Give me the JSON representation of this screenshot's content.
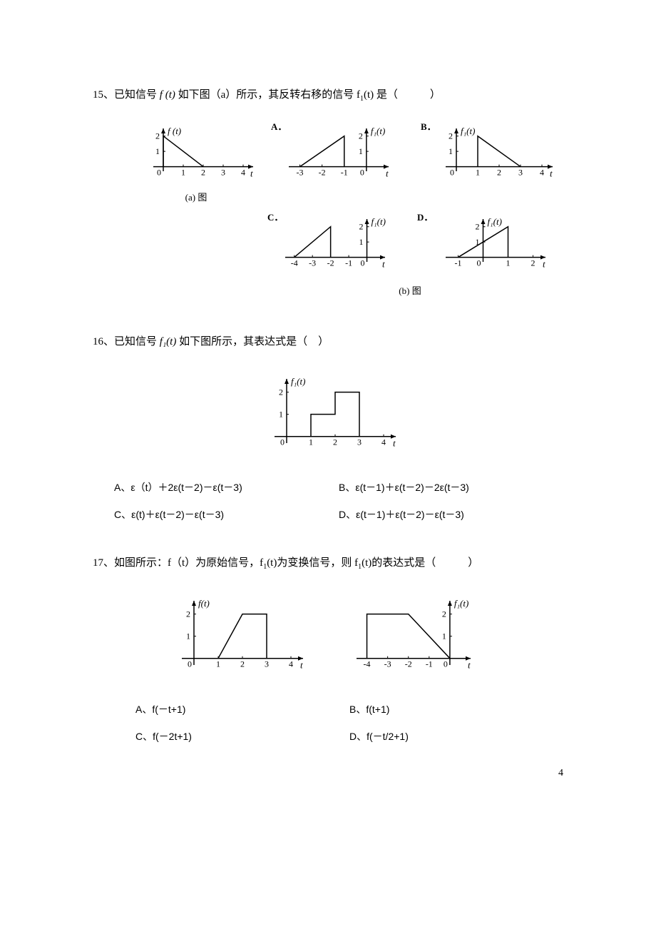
{
  "page_number": "4",
  "q15": {
    "number": "15、",
    "text_before": "已知信号 ",
    "fx": "f (t)",
    "text_after": " 如下图（a）所示，其反转右移的信号 f",
    "sub1": "1",
    "text_tail": "(t)  是（　　　）",
    "chart_a": {
      "caption": "(a)  图",
      "ylabel": "f (t)",
      "xticks": [
        "0",
        "1",
        "2",
        "3",
        "4"
      ],
      "yticks": [
        "1",
        "2"
      ],
      "xlabel": "t",
      "poly": [
        [
          0,
          0
        ],
        [
          0,
          2
        ],
        [
          2,
          0
        ]
      ],
      "xrange": [
        -0.5,
        4.5
      ],
      "yrange": [
        -0.3,
        2.5
      ]
    },
    "opt_A": {
      "label": "A．",
      "ylabel": "f₁(t)",
      "xticks": [
        "-3",
        "-2",
        "-1",
        "0"
      ],
      "yticks": [
        "1",
        "2"
      ],
      "xlabel": "t",
      "poly": [
        [
          -3,
          0
        ],
        [
          -1,
          2
        ],
        [
          -1,
          0
        ]
      ],
      "xrange": [
        -3.5,
        1
      ],
      "yrange": [
        -0.3,
        2.5
      ]
    },
    "opt_B": {
      "label": "B．",
      "ylabel": "f₁(t)",
      "xticks": [
        "0",
        "1",
        "2",
        "3",
        "4"
      ],
      "yticks": [
        "1",
        "2"
      ],
      "xlabel": "t",
      "poly": [
        [
          1,
          0
        ],
        [
          1,
          2
        ],
        [
          3,
          0
        ]
      ],
      "xrange": [
        -0.5,
        4.5
      ],
      "yrange": [
        -0.3,
        2.5
      ]
    },
    "opt_C": {
      "label": "C．",
      "ylabel": "f₁(t)",
      "xticks": [
        "-4",
        "-3",
        "-2",
        "-1",
        "0"
      ],
      "yticks": [
        "1",
        "2"
      ],
      "xlabel": "t",
      "poly": [
        [
          -4,
          0
        ],
        [
          -2,
          2
        ],
        [
          -2,
          0
        ]
      ],
      "xrange": [
        -4.5,
        1
      ],
      "yrange": [
        -0.3,
        2.5
      ]
    },
    "opt_D": {
      "label": "D．",
      "ylabel": "f₁(t)",
      "xticks": [
        "-1",
        "0",
        "1",
        "2"
      ],
      "yticks": [
        "1",
        "2"
      ],
      "xlabel": "t",
      "poly": [
        [
          -1,
          0
        ],
        [
          1,
          2
        ],
        [
          1,
          0
        ]
      ],
      "xrange": [
        -1.5,
        2.5
      ],
      "yrange": [
        -0.3,
        2.5
      ]
    },
    "caption_b": "(b)  图"
  },
  "q16": {
    "number": "16、",
    "text_before": "已知信号 ",
    "fx": "f₁(t)",
    "text_after": " 如下图所示，其表达式是（　）",
    "chart": {
      "ylabel": "f₁(t)",
      "xticks": [
        "0",
        "1",
        "2",
        "3",
        "4"
      ],
      "yticks": [
        "1",
        "2"
      ],
      "xlabel": "t",
      "poly": [
        [
          1,
          0
        ],
        [
          1,
          1
        ],
        [
          2,
          1
        ],
        [
          2,
          2
        ],
        [
          3,
          2
        ],
        [
          3,
          0
        ]
      ],
      "xrange": [
        -0.5,
        4.5
      ],
      "yrange": [
        -0.3,
        2.6
      ]
    },
    "options": {
      "A": "A、ε（t）＋2ε(t－2)－ε(t－3)",
      "B": "B、ε(t－1)＋ε(t－2)－2ε(t－3)",
      "C": "C、ε(t)＋ε(t－2)－ε(t－3)",
      "D": "D、ε(t－1)＋ε(t－2)－ε(t－3)"
    }
  },
  "q17": {
    "number": "17、",
    "text_before": "如图所示：f（t）为原始信号，f",
    "sub1": "1",
    "text_mid": "(t)为变换信号，则 f",
    "sub2": "1",
    "text_tail": "(t)的表达式是（　　　）",
    "chart_L": {
      "ylabel": "f(t)",
      "xticks": [
        "0",
        "1",
        "2",
        "3",
        "4"
      ],
      "yticks": [
        "1",
        "2"
      ],
      "xlabel": "t",
      "poly": [
        [
          1,
          0
        ],
        [
          2,
          2
        ],
        [
          3,
          2
        ],
        [
          3,
          0
        ]
      ],
      "xrange": [
        -0.5,
        4.5
      ],
      "yrange": [
        -0.3,
        2.6
      ]
    },
    "chart_R": {
      "ylabel": "f₁(t)",
      "xticks": [
        "-4",
        "-3",
        "-2",
        "-1",
        "0"
      ],
      "yticks": [
        "1",
        "2"
      ],
      "xlabel": "t",
      "poly": [
        [
          -4,
          0
        ],
        [
          -4,
          2
        ],
        [
          -2,
          2
        ],
        [
          0,
          0
        ]
      ],
      "xrange": [
        -4.5,
        1
      ],
      "yrange": [
        -0.3,
        2.6
      ]
    },
    "options": {
      "A": "A、f(－t+1)",
      "B": "B、f(t+1)",
      "C": "C、f(－2t+1)",
      "D": "D、f(－t/2+1)"
    }
  },
  "style": {
    "stroke": "#000000",
    "stroke_width": 1.5,
    "tick_len": 3
  }
}
